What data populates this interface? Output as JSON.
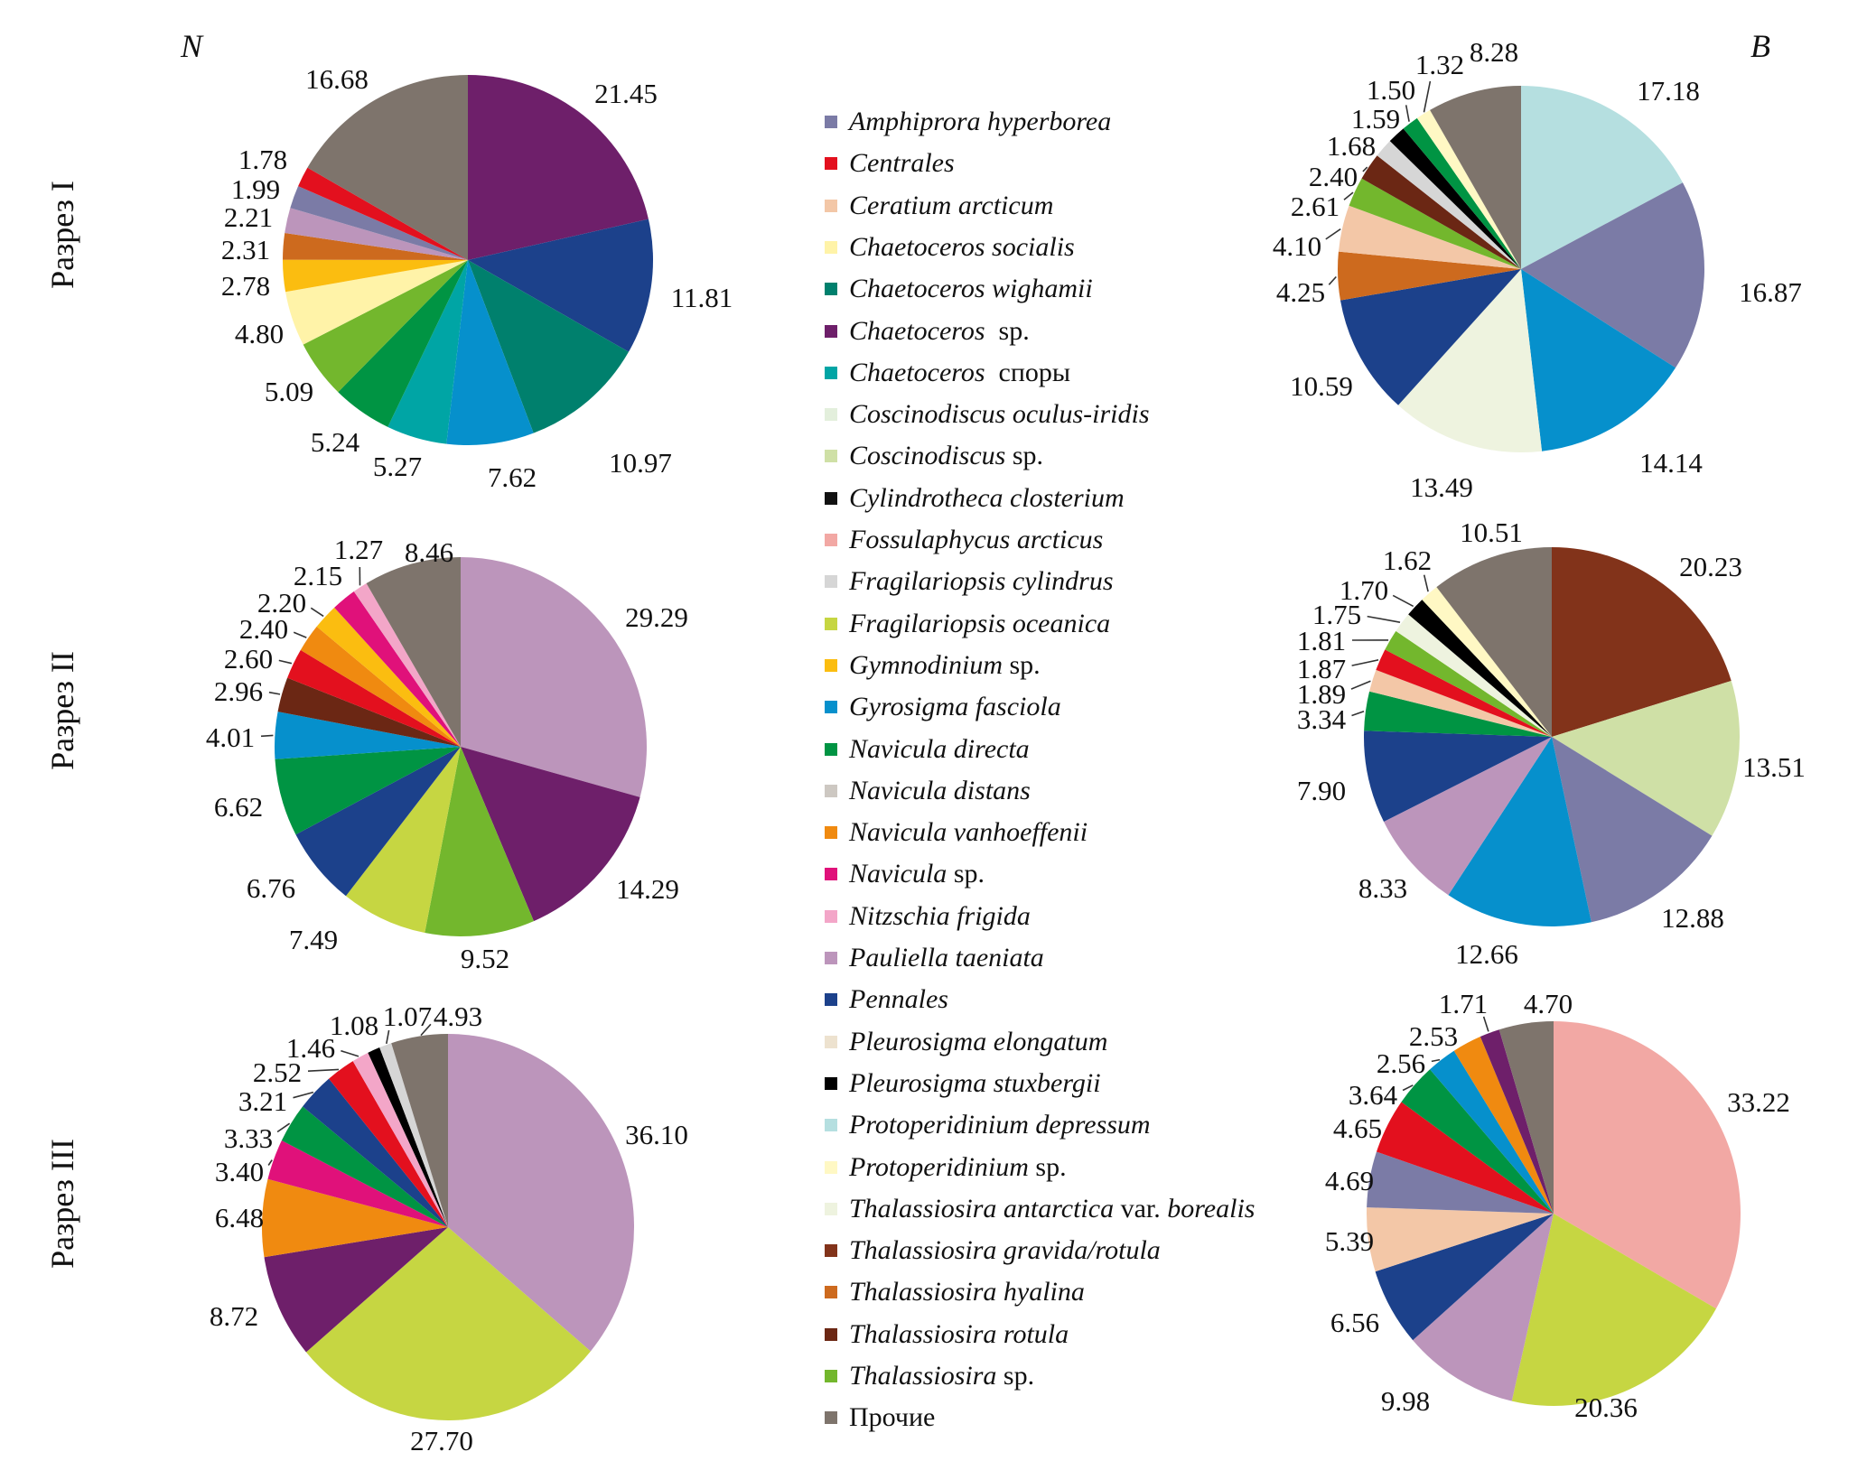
{
  "headers": {
    "left": "N",
    "right": "B"
  },
  "row_labels": [
    "Разрез I",
    "Разрез II",
    "Разрез III"
  ],
  "legend": [
    {
      "key": "amphiprora",
      "parts": [
        {
          "t": "Amphiprora hyperborea",
          "i": true
        }
      ],
      "color": "#7b7ba6"
    },
    {
      "key": "centrales",
      "parts": [
        {
          "t": "Centrales",
          "i": true
        }
      ],
      "color": "#e3101e"
    },
    {
      "key": "ceratium",
      "parts": [
        {
          "t": "Ceratium arcticum",
          "i": true
        }
      ],
      "color": "#f3c7a7"
    },
    {
      "key": "chaet_socialis",
      "parts": [
        {
          "t": "Chaetoceros socialis",
          "i": true
        }
      ],
      "color": "#fff3a8"
    },
    {
      "key": "chaet_wighamii",
      "parts": [
        {
          "t": "Chaetoceros wighamii",
          "i": true
        }
      ],
      "color": "#00806d"
    },
    {
      "key": "chaet_sp",
      "parts": [
        {
          "t": "Chaetoceros",
          "i": true
        },
        {
          "t": "  sp.",
          "i": false
        }
      ],
      "color": "#6e1f6a"
    },
    {
      "key": "chaet_spores",
      "parts": [
        {
          "t": "Chaetoceros",
          "i": true
        },
        {
          "t": "  споры",
          "i": false
        }
      ],
      "color": "#00a5a5"
    },
    {
      "key": "cosc_oculus",
      "parts": [
        {
          "t": "Coscinodiscus oculus-iridis",
          "i": true
        }
      ],
      "color": "#e3efdc"
    },
    {
      "key": "cosc_sp",
      "parts": [
        {
          "t": "Coscinodiscus",
          "i": true
        },
        {
          "t": " sp.",
          "i": false
        }
      ],
      "color": "#cfe0a6"
    },
    {
      "key": "cylindrotheca",
      "parts": [
        {
          "t": "Cylindrotheca closterium",
          "i": true
        }
      ],
      "color": "#111111"
    },
    {
      "key": "fossulaphycus",
      "parts": [
        {
          "t": "Fossulaphycus arcticus",
          "i": true
        }
      ],
      "color": "#f2a8a4"
    },
    {
      "key": "frag_cyl",
      "parts": [
        {
          "t": "Fragilariopsis cylindrus",
          "i": true
        }
      ],
      "color": "#d6d6d6"
    },
    {
      "key": "frag_oce",
      "parts": [
        {
          "t": "Fragilariopsis oceanica",
          "i": true
        }
      ],
      "color": "#c6d642"
    },
    {
      "key": "gymnodinium",
      "parts": [
        {
          "t": "Gymnodinium",
          "i": true
        },
        {
          "t": " sp.",
          "i": false
        }
      ],
      "color": "#fbbd10"
    },
    {
      "key": "gyrosigma",
      "parts": [
        {
          "t": "Gyrosigma fasciola",
          "i": true
        }
      ],
      "color": "#0690cc"
    },
    {
      "key": "nav_directa",
      "parts": [
        {
          "t": "Navicula directa",
          "i": true
        }
      ],
      "color": "#009443"
    },
    {
      "key": "nav_distans",
      "parts": [
        {
          "t": "Navicula distans",
          "i": true
        }
      ],
      "color": "#cdc8c2"
    },
    {
      "key": "nav_vanh",
      "parts": [
        {
          "t": "Navicula vanhoeffenii",
          "i": true
        }
      ],
      "color": "#f08a10"
    },
    {
      "key": "nav_sp",
      "parts": [
        {
          "t": "Navicula",
          "i": true
        },
        {
          "t": " sp.",
          "i": false
        }
      ],
      "color": "#e0117a"
    },
    {
      "key": "nitzschia",
      "parts": [
        {
          "t": "Nitzschia frigida",
          "i": true
        }
      ],
      "color": "#f3a6c8"
    },
    {
      "key": "pauliella",
      "parts": [
        {
          "t": "Pauliella taeniata",
          "i": true
        }
      ],
      "color": "#bc95bb"
    },
    {
      "key": "pennales",
      "parts": [
        {
          "t": "Pennales",
          "i": true
        }
      ],
      "color": "#1c418b"
    },
    {
      "key": "pleuro_elong",
      "parts": [
        {
          "t": "Pleurosigma elongatum",
          "i": true
        }
      ],
      "color": "#ede2cf"
    },
    {
      "key": "pleuro_stux",
      "parts": [
        {
          "t": "Pleurosigma stuxbergii",
          "i": true
        }
      ],
      "color": "#000000"
    },
    {
      "key": "proto_depr",
      "parts": [
        {
          "t": "Protoperidinium depressum",
          "i": true
        }
      ],
      "color": "#b5dfe0"
    },
    {
      "key": "proto_sp",
      "parts": [
        {
          "t": "Protoperidinium",
          "i": true
        },
        {
          "t": " sp.",
          "i": false
        }
      ],
      "color": "#fff8c4"
    },
    {
      "key": "thal_antarctica",
      "parts": [
        {
          "t": "Thalassiosira antarctica",
          "i": true
        },
        {
          "t": " var. ",
          "i": false
        },
        {
          "t": "borealis",
          "i": true
        }
      ],
      "color": "#eef3df"
    },
    {
      "key": "thal_gravida",
      "parts": [
        {
          "t": "Thalassiosira gravida/rotula",
          "i": true
        }
      ],
      "color": "#82331a"
    },
    {
      "key": "thal_hyalina",
      "parts": [
        {
          "t": "Thalassiosira hyalina",
          "i": true
        }
      ],
      "color": "#cd6a1e"
    },
    {
      "key": "thal_rotula",
      "parts": [
        {
          "t": "Thalassiosira rotula",
          "i": true
        }
      ],
      "color": "#6b2714"
    },
    {
      "key": "thal_sp",
      "parts": [
        {
          "t": "Thalassiosira",
          "i": true
        },
        {
          "t": " sp.",
          "i": false
        }
      ],
      "color": "#73b72d"
    },
    {
      "key": "other",
      "parts": [
        {
          "t": "Прочие",
          "i": false
        }
      ],
      "color": "#7e746c"
    }
  ],
  "chart_data": [
    {
      "type": "pie",
      "id": "N-I",
      "metric": "N",
      "section": "Разрез I",
      "slices": [
        {
          "key": "chaet_sp",
          "value": 21.45
        },
        {
          "key": "pennales",
          "value": 11.81
        },
        {
          "key": "chaet_wighamii",
          "value": 10.97
        },
        {
          "key": "gyrosigma",
          "value": 7.62
        },
        {
          "key": "chaet_spores",
          "value": 5.27
        },
        {
          "key": "nav_directa",
          "value": 5.24
        },
        {
          "key": "thal_sp",
          "value": 5.09
        },
        {
          "key": "chaet_socialis",
          "value": 4.8
        },
        {
          "key": "gymnodinium",
          "value": 2.78
        },
        {
          "key": "thal_hyalina",
          "value": 2.31
        },
        {
          "key": "pauliella",
          "value": 2.21
        },
        {
          "key": "amphiprora",
          "value": 1.99
        },
        {
          "key": "centrales",
          "value": 1.78
        },
        {
          "key": "other",
          "value": 16.68
        }
      ]
    },
    {
      "type": "pie",
      "id": "B-I",
      "metric": "B",
      "section": "Разрез I",
      "slices": [
        {
          "key": "proto_depr",
          "value": 17.18
        },
        {
          "key": "amphiprora",
          "value": 16.87
        },
        {
          "key": "gyrosigma",
          "value": 14.14
        },
        {
          "key": "thal_antarctica",
          "value": 13.49
        },
        {
          "key": "pennales",
          "value": 10.59
        },
        {
          "key": "thal_hyalina",
          "value": 4.25
        },
        {
          "key": "ceratium",
          "value": 4.1
        },
        {
          "key": "thal_sp",
          "value": 2.61
        },
        {
          "key": "thal_rotula",
          "value": 2.4
        },
        {
          "key": "frag_cyl",
          "value": 1.68
        },
        {
          "key": "pleuro_stux",
          "value": 1.59
        },
        {
          "key": "nav_directa",
          "value": 1.5
        },
        {
          "key": "proto_sp",
          "value": 1.32
        },
        {
          "key": "other",
          "value": 8.28
        }
      ]
    },
    {
      "type": "pie",
      "id": "N-II",
      "metric": "N",
      "section": "Разрез II",
      "slices": [
        {
          "key": "pauliella",
          "value": 29.29
        },
        {
          "key": "chaet_sp",
          "value": 14.29
        },
        {
          "key": "thal_sp",
          "value": 9.52
        },
        {
          "key": "frag_oce",
          "value": 7.49
        },
        {
          "key": "pennales",
          "value": 6.76
        },
        {
          "key": "nav_directa",
          "value": 6.62
        },
        {
          "key": "gyrosigma",
          "value": 4.01
        },
        {
          "key": "thal_rotula",
          "value": 2.96
        },
        {
          "key": "centrales",
          "value": 2.6
        },
        {
          "key": "nav_vanh",
          "value": 2.4
        },
        {
          "key": "gymnodinium",
          "value": 2.2
        },
        {
          "key": "nav_sp",
          "value": 2.15
        },
        {
          "key": "nitzschia",
          "value": 1.27
        },
        {
          "key": "other",
          "value": 8.46
        }
      ]
    },
    {
      "type": "pie",
      "id": "B-II",
      "metric": "B",
      "section": "Разрез II",
      "slices": [
        {
          "key": "thal_gravida",
          "value": 20.23
        },
        {
          "key": "cosc_sp",
          "value": 13.51
        },
        {
          "key": "amphiprora",
          "value": 12.88
        },
        {
          "key": "gyrosigma",
          "value": 12.66
        },
        {
          "key": "pauliella",
          "value": 8.33
        },
        {
          "key": "pennales",
          "value": 7.9
        },
        {
          "key": "nav_directa",
          "value": 3.34
        },
        {
          "key": "ceratium",
          "value": 1.89
        },
        {
          "key": "centrales",
          "value": 1.87
        },
        {
          "key": "thal_sp",
          "value": 1.81
        },
        {
          "key": "thal_antarctica",
          "value": 1.75
        },
        {
          "key": "pleuro_stux",
          "value": 1.7
        },
        {
          "key": "proto_sp",
          "value": 1.62
        },
        {
          "key": "other",
          "value": 10.51
        }
      ]
    },
    {
      "type": "pie",
      "id": "N-III",
      "metric": "N",
      "section": "Разрез III",
      "slices": [
        {
          "key": "pauliella",
          "value": 36.1
        },
        {
          "key": "frag_oce",
          "value": 27.7
        },
        {
          "key": "chaet_sp",
          "value": 8.72
        },
        {
          "key": "nav_vanh",
          "value": 6.48
        },
        {
          "key": "nav_sp",
          "value": 3.4
        },
        {
          "key": "nav_directa",
          "value": 3.33
        },
        {
          "key": "pennales",
          "value": 3.21
        },
        {
          "key": "centrales",
          "value": 2.52
        },
        {
          "key": "nitzschia",
          "value": 1.46
        },
        {
          "key": "pleuro_stux",
          "value": 1.08
        },
        {
          "key": "frag_cyl",
          "value": 1.07
        },
        {
          "key": "other",
          "value": 4.93
        }
      ]
    },
    {
      "type": "pie",
      "id": "B-III",
      "metric": "B",
      "section": "Разрез III",
      "slices": [
        {
          "key": "fossulaphycus",
          "value": 33.22
        },
        {
          "key": "frag_oce",
          "value": 20.36
        },
        {
          "key": "pauliella",
          "value": 9.98
        },
        {
          "key": "pennales",
          "value": 6.56
        },
        {
          "key": "ceratium",
          "value": 5.39
        },
        {
          "key": "amphiprora",
          "value": 4.69
        },
        {
          "key": "centrales",
          "value": 4.65
        },
        {
          "key": "nav_directa",
          "value": 3.64
        },
        {
          "key": "gyrosigma",
          "value": 2.56
        },
        {
          "key": "nav_vanh",
          "value": 2.53
        },
        {
          "key": "chaet_sp",
          "value": 1.71
        },
        {
          "key": "other",
          "value": 4.7
        }
      ]
    }
  ]
}
